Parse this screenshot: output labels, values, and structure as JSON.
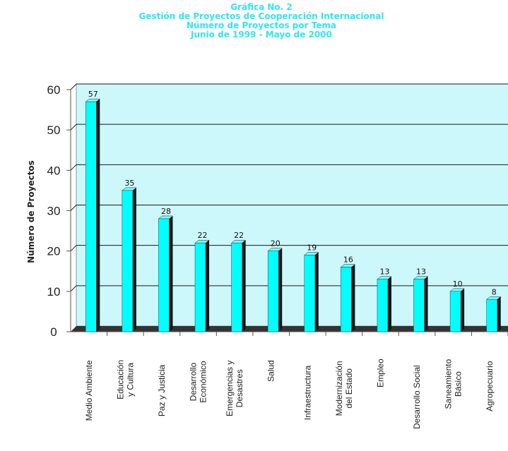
{
  "chart_data": {
    "type": "bar",
    "title_lines": [
      "Gráfica No. 2",
      "Gestión de Proyectos de Cooperación Internacional",
      "Número de Proyectos por Tema",
      "Junio de 1999 - Mayo de 2000"
    ],
    "ylabel": "Número de Proyectos",
    "xlabel": "",
    "ylim": [
      0,
      60
    ],
    "yticks": [
      0,
      10,
      20,
      30,
      40,
      50,
      60
    ],
    "grid": true,
    "categories": [
      [
        "Medio Ambiente"
      ],
      [
        "Educación",
        "y Cultura"
      ],
      [
        "Paz y Justicia"
      ],
      [
        "Desarrollo",
        "Económico"
      ],
      [
        "Emergencias y",
        "Desastres"
      ],
      [
        "Salud"
      ],
      [
        "Infraestructura"
      ],
      [
        "Modernización",
        "del Estado"
      ],
      [
        "Empleo"
      ],
      [
        "Desarrollo Social"
      ],
      [
        "Saneamiento",
        "Básico"
      ],
      [
        "Agropecuario"
      ]
    ],
    "values": [
      57,
      35,
      28,
      22,
      22,
      20,
      19,
      16,
      13,
      13,
      10,
      8
    ],
    "colors": {
      "plot_background": "#ccf8fb",
      "bar_fill": "#00ffff",
      "bar_side": "#111111",
      "floor": "#333333",
      "gridline": "#1a1a1a",
      "title": "#2ee6f2"
    }
  }
}
